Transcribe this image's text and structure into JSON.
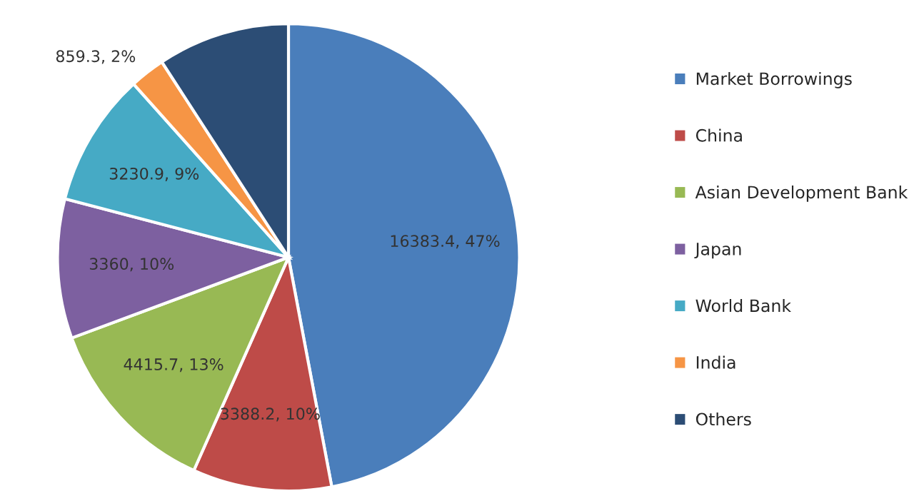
{
  "chart_data": {
    "type": "pie",
    "categories": [
      "Market Borrowings",
      "China",
      "Asian Development Bank",
      "Japan",
      "World Bank",
      "India",
      "Others"
    ],
    "values": [
      16383.4,
      3388.2,
      4415.7,
      3360,
      3230.9,
      859.3,
      3220
    ],
    "colors": [
      "#4a7ebb",
      "#be4b48",
      "#98b954",
      "#7d60a0",
      "#46aac5",
      "#f69545",
      "#2c4d75"
    ],
    "value_labels": [
      "16383.4, 47%",
      "3388.2, 10%",
      "4415.7, 13%",
      "3360, 10%",
      "3230.9, 9%",
      "859.3, 2%",
      null
    ],
    "legend": "right"
  }
}
